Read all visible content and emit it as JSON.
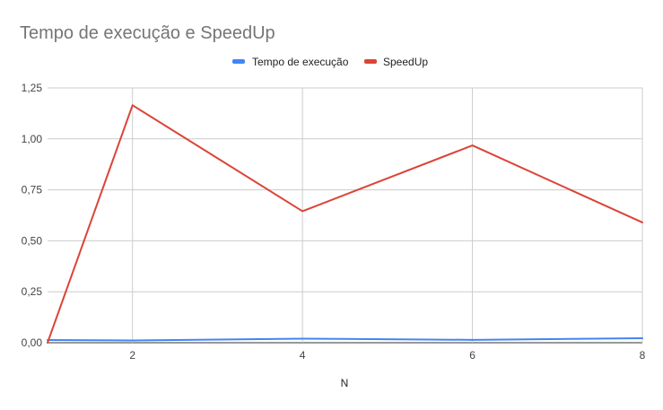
{
  "chart_data": {
    "type": "line",
    "title": "Tempo de execução e SpeedUp",
    "xlabel": "N",
    "ylabel": "",
    "x": [
      1,
      2,
      4,
      6,
      8
    ],
    "xlim": [
      1,
      8
    ],
    "ylim": [
      0,
      1.25
    ],
    "x_ticks": [
      2,
      4,
      6,
      8
    ],
    "x_tick_labels": [
      "2",
      "4",
      "6",
      "8"
    ],
    "y_ticks": [
      0,
      0.25,
      0.5,
      0.75,
      1.0,
      1.25
    ],
    "y_tick_labels": [
      "0,00",
      "0,25",
      "0,50",
      "0,75",
      "1,00",
      "1,25"
    ],
    "grid": true,
    "legend_position": "top",
    "series": [
      {
        "name": "Tempo de execução",
        "color": "#4285f4",
        "values": [
          0.013,
          0.011,
          0.02,
          0.014,
          0.022
        ]
      },
      {
        "name": "SpeedUp",
        "color": "#db4437",
        "values": [
          0.0,
          1.165,
          0.645,
          0.968,
          0.59
        ]
      }
    ]
  }
}
